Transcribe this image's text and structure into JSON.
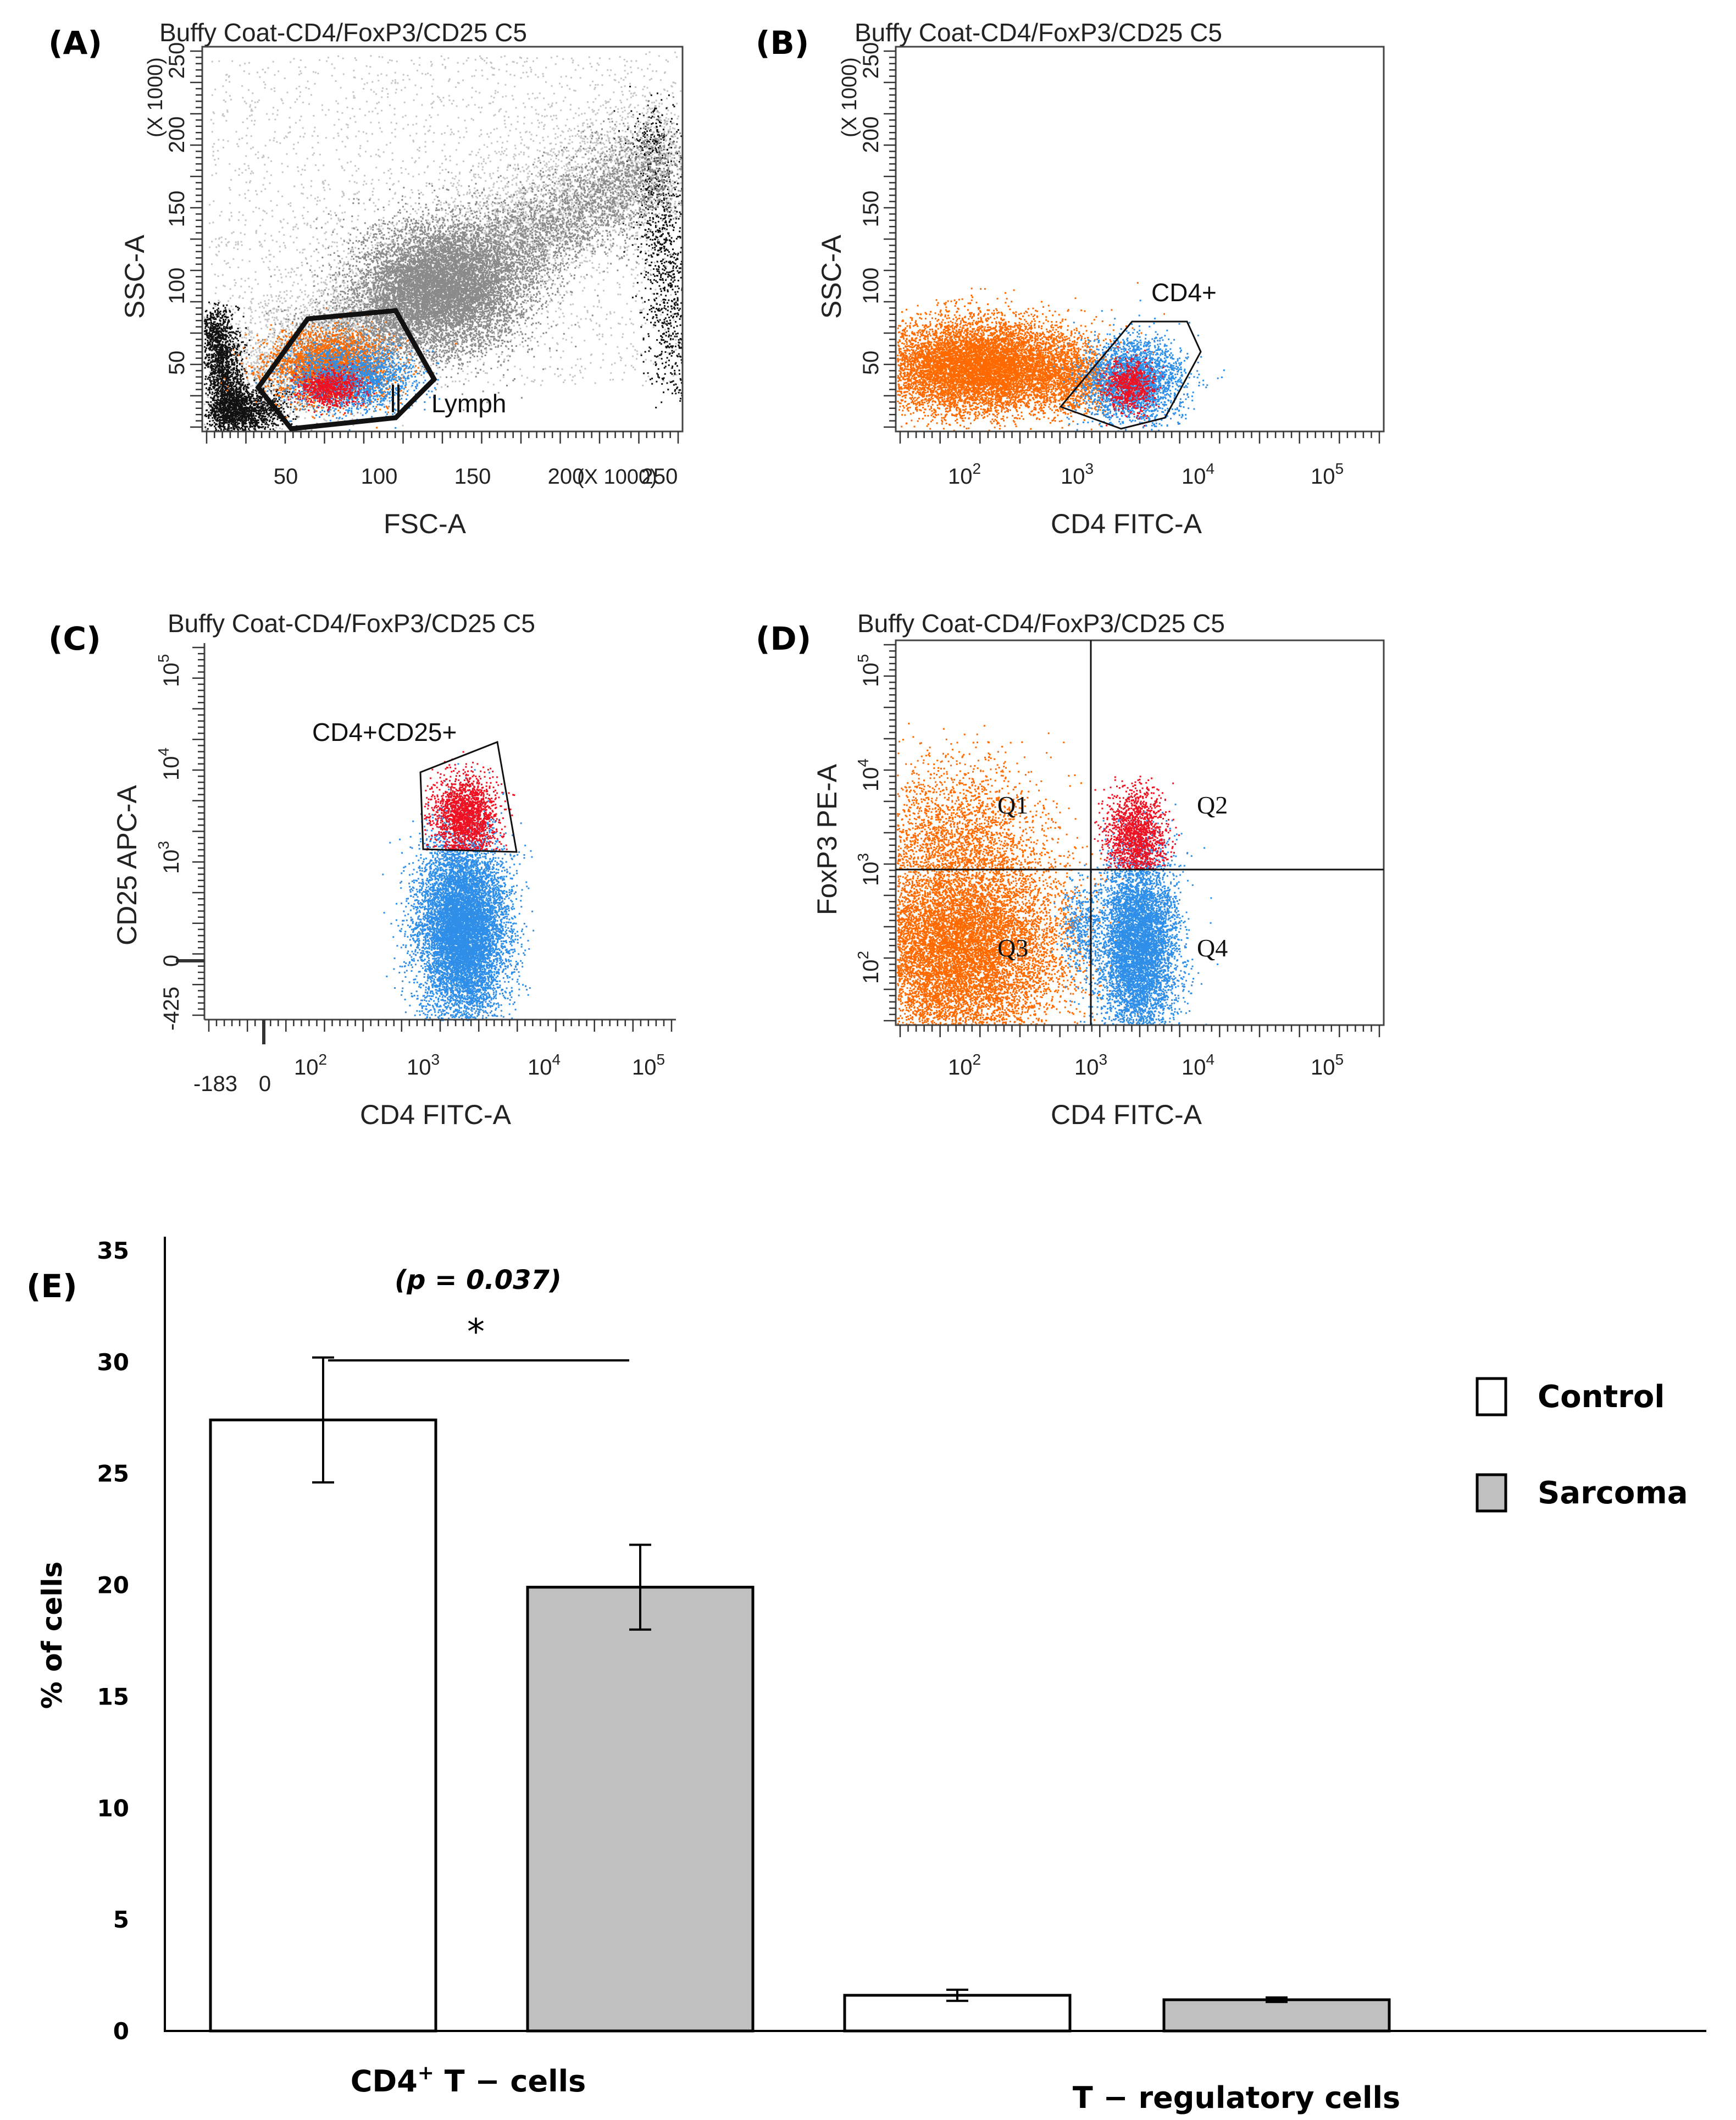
{
  "colors": {
    "orange": "#ff6a00",
    "blue": "#2f8fe8",
    "red": "#ee1122",
    "grey": "#8a8a8a",
    "lightgrey": "#c6c6c6",
    "black": "#111111",
    "sarcoma_fill": "#c0c0c0",
    "control_fill": "#ffffff"
  },
  "panels": {
    "A": {
      "letter": "(A)",
      "title": "Buffy Coat-CD4/FoxP3/CD25 C5",
      "xlabel": "FSC-A",
      "ylabel": "SSC-A",
      "x_multiplier": "(X 1000)",
      "y_multiplier": "(X 1000)",
      "xticks": [
        "50",
        "100",
        "150",
        "200",
        "250"
      ],
      "yticks": [
        "50",
        "100",
        "150",
        "200",
        "250"
      ],
      "gate_label": "Lymph"
    },
    "B": {
      "letter": "(B)",
      "title": "Buffy Coat-CD4/FoxP3/CD25 C5",
      "xlabel": "CD4 FITC-A",
      "ylabel": "SSC-A",
      "y_multiplier": "(X 1000)",
      "yticks": [
        "50",
        "100",
        "150",
        "200",
        "250"
      ],
      "xtick_base": "10",
      "xtick_exps": [
        "2",
        "3",
        "4",
        "5"
      ],
      "gate_label": "CD4+"
    },
    "C": {
      "letter": "(C)",
      "title": "Buffy Coat-CD4/FoxP3/CD25 C5",
      "xlabel": "CD4 FITC-A",
      "ylabel": "CD25 APC-A",
      "xtick_plain": [
        "-183",
        "0"
      ],
      "xtick_base": "10",
      "xtick_exps": [
        "2",
        "3",
        "4",
        "5"
      ],
      "ytick_plain": [
        "-425",
        "0"
      ],
      "ytick_exps": [
        "3",
        "4",
        "5"
      ],
      "gate_label": "CD4+CD25+"
    },
    "D": {
      "letter": "(D)",
      "title": "Buffy Coat-CD4/FoxP3/CD25 C5",
      "xlabel": "CD4 FITC-A",
      "ylabel": "FoxP3 PE-A",
      "xtick_base": "10",
      "xtick_exps": [
        "2",
        "3",
        "4",
        "5"
      ],
      "ytick_exps": [
        "2",
        "3",
        "4",
        "5"
      ],
      "quadrants": [
        "Q1",
        "Q2",
        "Q3",
        "Q4"
      ]
    }
  },
  "chart_data": {
    "type": "bar",
    "panel_letter": "(E)",
    "title": "",
    "xlabel": "",
    "ylabel": "% of cells",
    "categories": [
      "CD4⁺ T − cells",
      "T − regulatory cells"
    ],
    "category_labels": {
      "cat1_main": "CD4",
      "cat1_sup": "+",
      "cat1_rest": " T − cells",
      "cat2": "T − regulatory cells"
    },
    "series": [
      {
        "name": "Control",
        "values": [
          27.4,
          1.6
        ],
        "errors": [
          2.8,
          0.25
        ]
      },
      {
        "name": "Sarcoma",
        "values": [
          19.9,
          1.4
        ],
        "errors": [
          1.9,
          0.1
        ]
      }
    ],
    "ylim": [
      0,
      35
    ],
    "yticks": [
      "0",
      "5",
      "10",
      "15",
      "20",
      "25",
      "30",
      "35"
    ],
    "significance": {
      "label": "(p = 0.037)",
      "marker": "*"
    },
    "legend": [
      "Control",
      "Sarcoma"
    ],
    "legend_position": "right"
  }
}
